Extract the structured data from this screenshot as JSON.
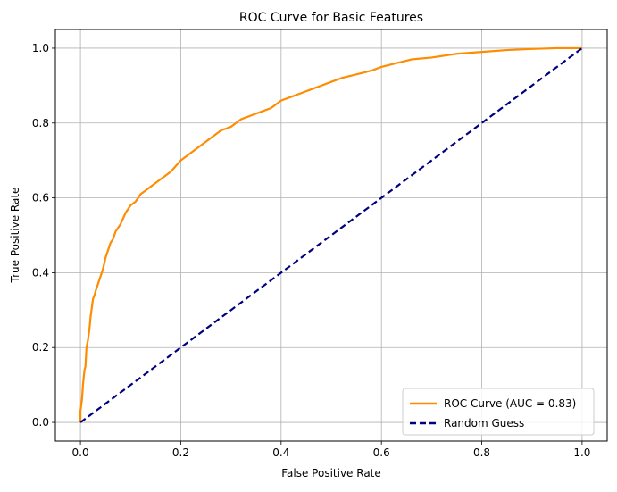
{
  "chart_data": {
    "type": "line",
    "title": "ROC Curve for Basic Features",
    "xlabel": "False Positive Rate",
    "ylabel": "True Positive Rate",
    "xlim": [
      -0.05,
      1.05
    ],
    "ylim": [
      -0.05,
      1.05
    ],
    "xticks": [
      0.0,
      0.2,
      0.4,
      0.6,
      0.8,
      1.0
    ],
    "yticks": [
      0.0,
      0.2,
      0.4,
      0.6,
      0.8,
      1.0
    ],
    "xtick_labels": [
      "0.0",
      "0.2",
      "0.4",
      "0.6",
      "0.8",
      "1.0"
    ],
    "ytick_labels": [
      "0.0",
      "0.2",
      "0.4",
      "0.6",
      "0.8",
      "1.0"
    ],
    "grid": true,
    "legend_position": "lower-right",
    "series": [
      {
        "name": "ROC Curve (AUC = 0.83)",
        "color": "#ff8c00",
        "style": "solid",
        "x": [
          0.0,
          0.0,
          0.003,
          0.005,
          0.008,
          0.01,
          0.012,
          0.015,
          0.018,
          0.02,
          0.022,
          0.025,
          0.028,
          0.03,
          0.035,
          0.04,
          0.045,
          0.05,
          0.055,
          0.06,
          0.065,
          0.07,
          0.075,
          0.08,
          0.09,
          0.1,
          0.11,
          0.12,
          0.13,
          0.14,
          0.15,
          0.16,
          0.17,
          0.18,
          0.2,
          0.22,
          0.24,
          0.26,
          0.28,
          0.3,
          0.32,
          0.34,
          0.36,
          0.38,
          0.4,
          0.42,
          0.44,
          0.46,
          0.48,
          0.5,
          0.52,
          0.55,
          0.58,
          0.6,
          0.63,
          0.66,
          0.7,
          0.75,
          0.8,
          0.85,
          0.9,
          0.95,
          1.0
        ],
        "y": [
          0.0,
          0.03,
          0.06,
          0.1,
          0.14,
          0.15,
          0.2,
          0.22,
          0.25,
          0.28,
          0.3,
          0.33,
          0.34,
          0.35,
          0.37,
          0.39,
          0.41,
          0.44,
          0.46,
          0.48,
          0.49,
          0.51,
          0.52,
          0.53,
          0.56,
          0.58,
          0.59,
          0.61,
          0.62,
          0.63,
          0.64,
          0.65,
          0.66,
          0.67,
          0.7,
          0.72,
          0.74,
          0.76,
          0.78,
          0.79,
          0.81,
          0.82,
          0.83,
          0.84,
          0.86,
          0.87,
          0.88,
          0.89,
          0.9,
          0.91,
          0.92,
          0.93,
          0.94,
          0.95,
          0.96,
          0.97,
          0.975,
          0.985,
          0.99,
          0.995,
          0.998,
          1.0,
          1.0
        ]
      },
      {
        "name": "Random Guess",
        "color": "#000080",
        "style": "dashed",
        "x": [
          0.0,
          1.0
        ],
        "y": [
          0.0,
          1.0
        ]
      }
    ]
  }
}
